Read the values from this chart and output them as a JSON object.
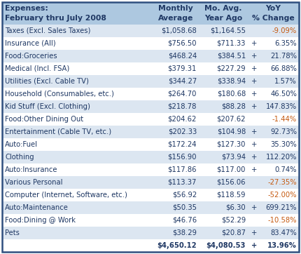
{
  "title_line1": "Expenses:",
  "title_line2": "February thru July 2008",
  "rows": [
    {
      "label": "Taxes (Excl. Sales Taxes)",
      "monthly": "$1,058.68",
      "year_ago": "$1,164.55",
      "sign": "",
      "pct": "-9.09%",
      "positive": false
    },
    {
      "label": "Insurance (All)",
      "monthly": "$756.50",
      "year_ago": "$711.33",
      "sign": "+",
      "pct": "6.35%",
      "positive": true
    },
    {
      "label": "Food:Groceries",
      "monthly": "$468.24",
      "year_ago": "$384.51",
      "sign": "+",
      "pct": "21.78%",
      "positive": true
    },
    {
      "label": "Medical (Incl. FSA)",
      "monthly": "$379.31",
      "year_ago": "$227.29",
      "sign": "+",
      "pct": "66.88%",
      "positive": true
    },
    {
      "label": "Utilities (Excl. Cable TV)",
      "monthly": "$344.27",
      "year_ago": "$338.94",
      "sign": "+",
      "pct": "1.57%",
      "positive": true
    },
    {
      "label": "Household (Consumables, etc.)",
      "monthly": "$264.70",
      "year_ago": "$180.68",
      "sign": "+",
      "pct": "46.50%",
      "positive": true
    },
    {
      "label": "Kid Stuff (Excl. Clothing)",
      "monthly": "$218.78",
      "year_ago": "$88.28",
      "sign": "+",
      "pct": "147.83%",
      "positive": true
    },
    {
      "label": "Food:Other Dining Out",
      "monthly": "$204.62",
      "year_ago": "$207.62",
      "sign": "",
      "pct": "-1.44%",
      "positive": false
    },
    {
      "label": "Entertainment (Cable TV, etc.)",
      "monthly": "$202.33",
      "year_ago": "$104.98",
      "sign": "+",
      "pct": "92.73%",
      "positive": true
    },
    {
      "label": "Auto:Fuel",
      "monthly": "$172.24",
      "year_ago": "$127.30",
      "sign": "+",
      "pct": "35.30%",
      "positive": true
    },
    {
      "label": "Clothing",
      "monthly": "$156.90",
      "year_ago": "$73.94",
      "sign": "+",
      "pct": "112.20%",
      "positive": true
    },
    {
      "label": "Auto:Insurance",
      "monthly": "$117.86",
      "year_ago": "$117.00",
      "sign": "+",
      "pct": "0.74%",
      "positive": true
    },
    {
      "label": "Various Personal",
      "monthly": "$113.37",
      "year_ago": "$156.06",
      "sign": "",
      "pct": "-27.35%",
      "positive": false
    },
    {
      "label": "Computer (Internet, Software, etc.)",
      "monthly": "$56.92",
      "year_ago": "$118.59",
      "sign": "",
      "pct": "-52.00%",
      "positive": false
    },
    {
      "label": "Auto:Maintenance",
      "monthly": "$50.35",
      "year_ago": "$6.30",
      "sign": "+",
      "pct": "699.21%",
      "positive": true
    },
    {
      "label": "Food:Dining @ Work",
      "monthly": "$46.76",
      "year_ago": "$52.29",
      "sign": "",
      "pct": "-10.58%",
      "positive": false
    },
    {
      "label": "Pets",
      "monthly": "$38.29",
      "year_ago": "$20.87",
      "sign": "+",
      "pct": "83.47%",
      "positive": true
    }
  ],
  "totals": {
    "label": "",
    "monthly": "$4,650.12",
    "year_ago": "$4,080.53",
    "sign": "+",
    "pct": "13.96%",
    "positive": true
  },
  "header_bg": "#adc8e0",
  "row_bg_light": "#dce6f1",
  "row_bg_white": "#ffffff",
  "text_color_dark": "#1f3864",
  "text_color_orange": "#c55a11",
  "border_color": "#2f4f7f",
  "fig_w": 4.3,
  "fig_h": 3.62,
  "dpi": 100
}
